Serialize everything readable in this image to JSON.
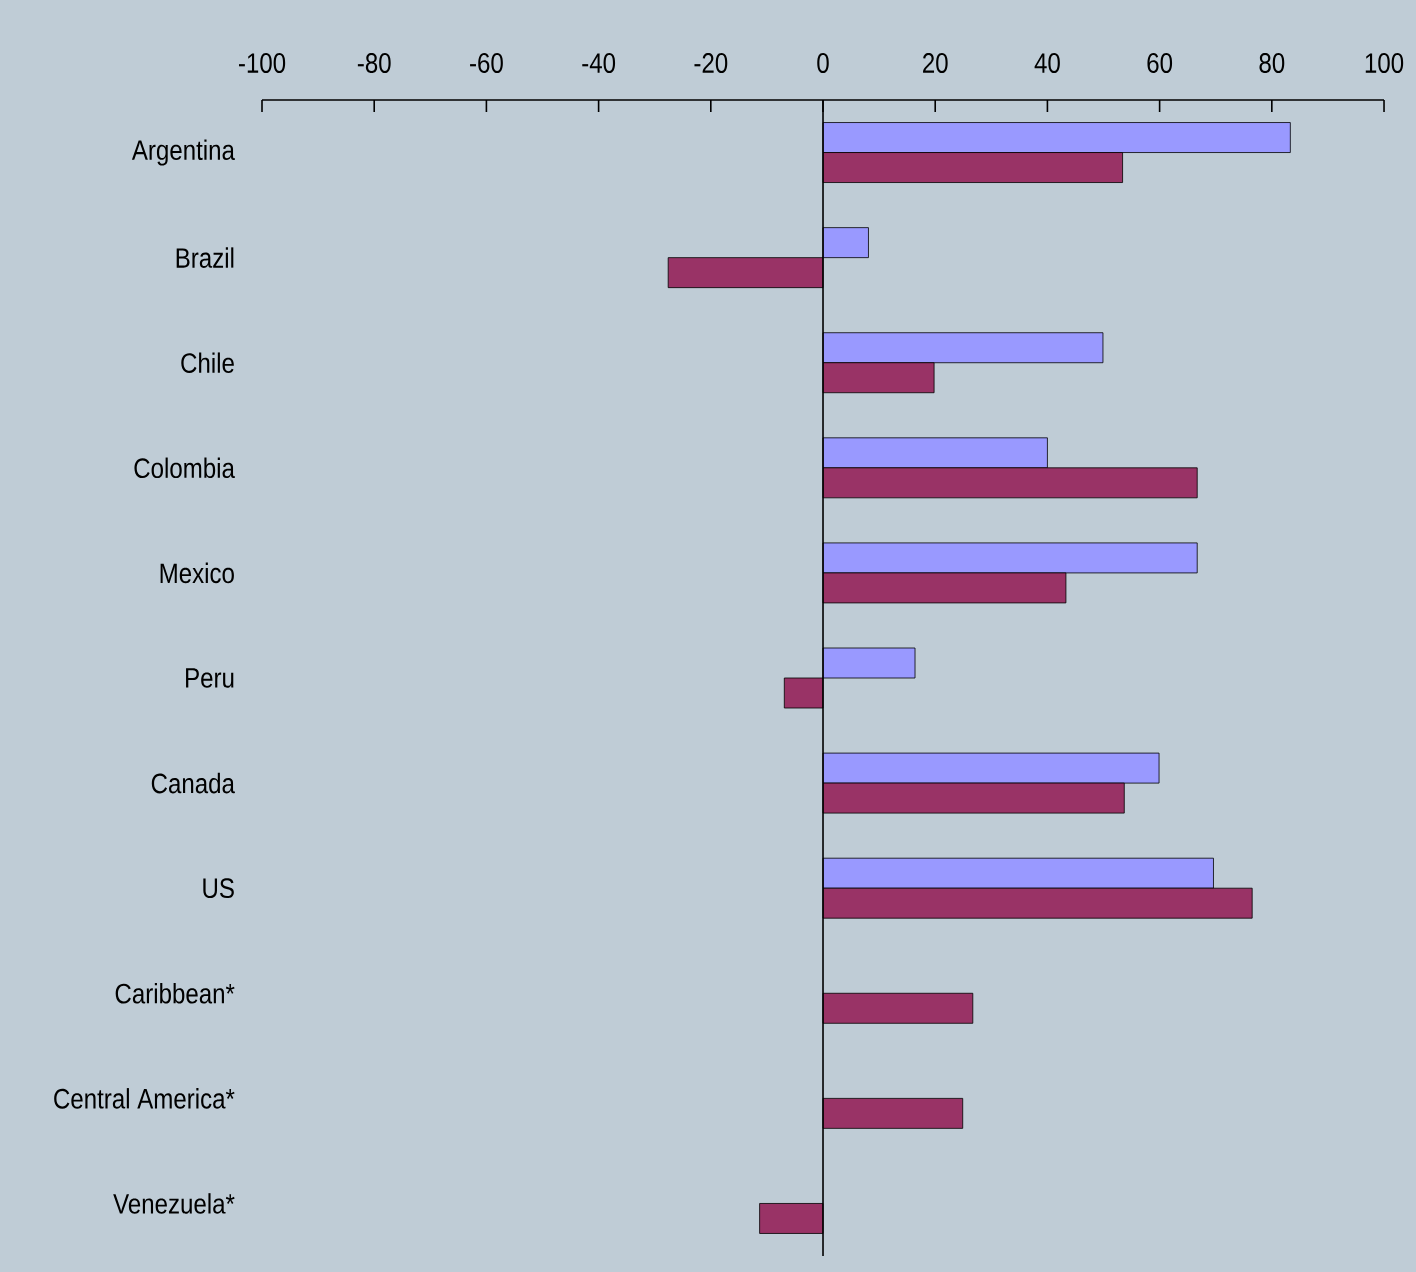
{
  "chart_data": {
    "type": "bar",
    "orientation": "horizontal",
    "categories": [
      "Argentina",
      "Brazil",
      "Chile",
      "Colombia",
      "Mexico",
      "Peru",
      "Canada",
      "US",
      "Caribbean*",
      "Central America*",
      "Venezuela*"
    ],
    "series": [
      {
        "color": "#9999ff",
        "values": [
          83.3,
          8.1,
          49.9,
          40,
          66.7,
          16.4,
          59.9,
          69.6,
          null,
          null,
          null
        ]
      },
      {
        "color": "#993366",
        "values": [
          53.4,
          -27.6,
          19.8,
          66.7,
          43.3,
          -6.9,
          53.7,
          76.5,
          26.7,
          24.9,
          -11.3
        ]
      }
    ],
    "xlim": [
      -100,
      100
    ],
    "xticks": [
      -100,
      -80,
      -60,
      -40,
      -20,
      0,
      20,
      40,
      60,
      80,
      100
    ]
  }
}
